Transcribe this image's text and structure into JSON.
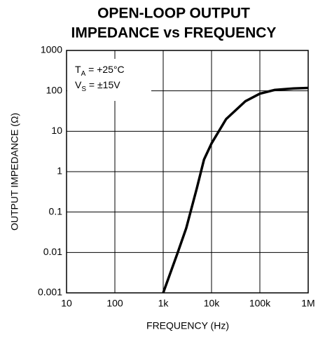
{
  "chart_data": {
    "type": "line",
    "title": [
      "OPEN-LOOP OUTPUT",
      "IMPEDANCE vs FREQUENCY"
    ],
    "x_label": "FREQUENCY (Hz)",
    "y_label": "OUTPUT IMPEDANCE (Ω)",
    "annotations": [
      {
        "main": "T",
        "sub": "A",
        "rest": " = +25°C"
      },
      {
        "main": "V",
        "sub": "S",
        "rest": " = ±15V"
      }
    ],
    "x_scale": "log",
    "y_scale": "log",
    "grid": true,
    "xlim": [
      10,
      1000000
    ],
    "ylim": [
      0.001,
      1000
    ],
    "xticks": [
      10,
      100,
      {
        "value": 1000,
        "label": "1k"
      },
      {
        "value": 10000,
        "label": "10k"
      },
      {
        "value": 100000,
        "label": "100k"
      },
      {
        "value": 1000000,
        "label": "1M"
      }
    ],
    "yticks": [
      0.001,
      0.01,
      0.1,
      1,
      10,
      100,
      1000
    ],
    "series": [
      {
        "name": "Output Impedance",
        "color": "#000000",
        "x": [
          1000,
          2000,
          3000,
          5000,
          7000,
          10000,
          20000,
          50000,
          100000,
          200000,
          500000,
          1000000
        ],
        "values": [
          0.001,
          0.01,
          0.04,
          0.4,
          2,
          5,
          20,
          55,
          85,
          105,
          115,
          118
        ]
      }
    ]
  }
}
